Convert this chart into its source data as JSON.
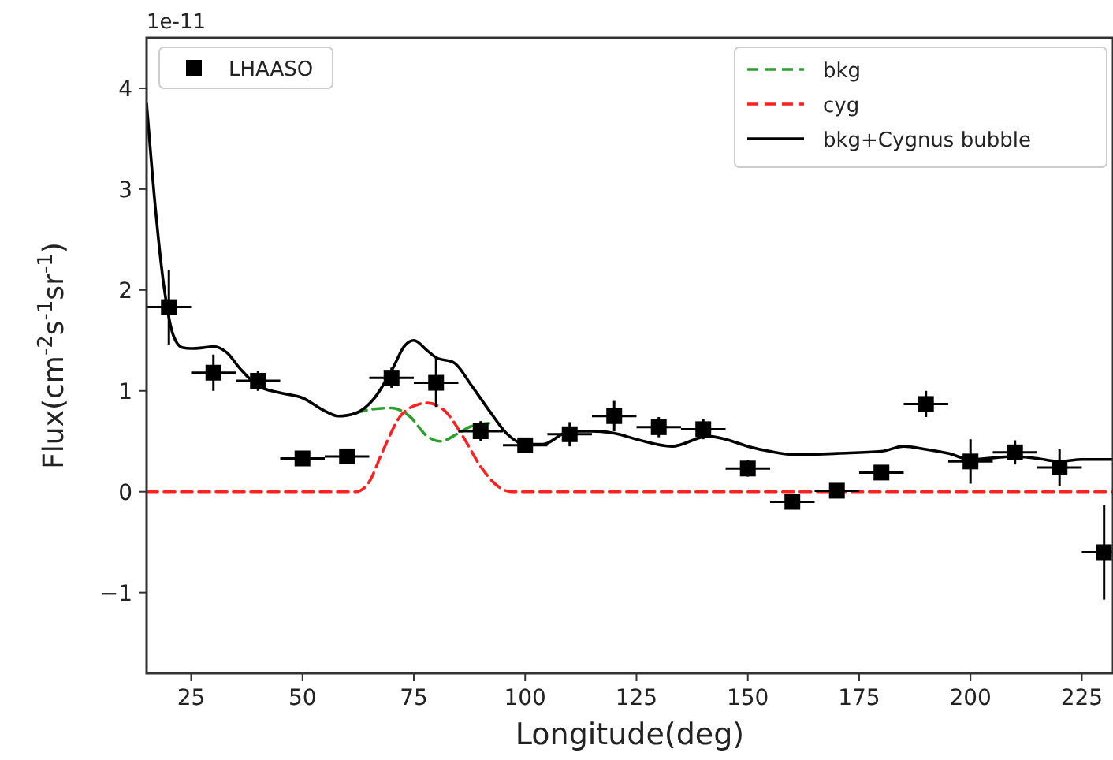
{
  "chart_data": {
    "type": "scatter",
    "xlabel": "Longitude(deg)",
    "ylabel": "Flux(cm$^{-2}$s$^{-1}$sr$^{-1}$)",
    "annotations": [
      "1e-11"
    ],
    "xlim": [
      15,
      232
    ],
    "xticks": [
      25,
      50,
      75,
      100,
      125,
      150,
      175,
      200,
      225
    ],
    "ylim": [
      -1.8,
      4.5
    ],
    "yticks": [
      -1,
      0,
      1,
      2,
      3,
      4
    ],
    "legend": "top right",
    "grid": false,
    "series": [
      {
        "name": "LHAASO",
        "type": "scatter",
        "marker": "square",
        "color": "#000000",
        "x": [
          20,
          30,
          40,
          50,
          60,
          70,
          80,
          90,
          100,
          110,
          120,
          130,
          140,
          150,
          160,
          170,
          180,
          190,
          200,
          210,
          220,
          230
        ],
        "values": [
          1.83,
          1.18,
          1.1,
          0.33,
          0.35,
          1.13,
          1.08,
          0.6,
          0.46,
          0.57,
          0.75,
          0.64,
          0.62,
          0.23,
          -0.1,
          0.01,
          0.19,
          0.87,
          0.3,
          0.39,
          0.24,
          -0.6
        ],
        "errors": [
          0.37,
          0.18,
          0.1,
          0.06,
          0.05,
          0.1,
          0.24,
          0.1,
          0.07,
          0.12,
          0.15,
          0.1,
          0.1,
          0.08,
          0.07,
          0.05,
          0.06,
          0.13,
          0.22,
          0.12,
          0.18,
          0.47
        ],
        "xerrors": [
          5,
          5,
          5,
          5,
          5,
          5,
          5,
          5,
          5,
          5,
          5,
          5,
          5,
          5,
          5,
          5,
          5,
          5,
          5,
          5,
          5,
          5
        ]
      },
      {
        "name": "bkg",
        "type": "line",
        "line_style": "dashed",
        "color": "#2ca02c",
        "x": [
          62,
          66,
          70,
          74,
          78,
          81,
          85,
          88,
          92
        ],
        "values": [
          0.78,
          0.82,
          0.83,
          0.75,
          0.55,
          0.5,
          0.58,
          0.65,
          0.68
        ]
      },
      {
        "name": "cyg",
        "type": "line",
        "line_style": "dashed",
        "color": "#ff2020",
        "x": [
          15,
          62,
          65,
          68,
          72,
          75,
          78,
          82,
          86,
          90,
          94,
          97,
          232
        ],
        "values": [
          0,
          0,
          0.1,
          0.4,
          0.75,
          0.85,
          0.88,
          0.8,
          0.55,
          0.25,
          0.05,
          0,
          0
        ]
      },
      {
        "name": "bkg+Cygnus bubble",
        "type": "line",
        "line_style": "solid",
        "color": "#000000",
        "x": [
          15,
          17,
          19,
          21,
          23,
          25,
          28,
          30,
          33,
          36,
          40,
          45,
          50,
          55,
          58,
          62,
          66,
          70,
          73,
          75,
          78,
          80,
          84,
          88,
          92,
          96,
          100,
          104,
          110,
          115,
          120,
          125,
          133,
          141,
          145,
          150,
          155,
          160,
          164,
          170,
          180,
          185,
          190,
          195,
          200,
          210,
          215,
          220,
          225,
          232
        ],
        "values": [
          3.85,
          2.8,
          2.0,
          1.55,
          1.43,
          1.42,
          1.43,
          1.44,
          1.38,
          1.22,
          1.05,
          0.98,
          0.93,
          0.8,
          0.75,
          0.78,
          0.92,
          1.2,
          1.45,
          1.5,
          1.4,
          1.33,
          1.28,
          1.05,
          0.8,
          0.57,
          0.47,
          0.47,
          0.6,
          0.6,
          0.58,
          0.52,
          0.45,
          0.55,
          0.52,
          0.45,
          0.4,
          0.37,
          0.37,
          0.38,
          0.4,
          0.45,
          0.42,
          0.38,
          0.32,
          0.35,
          0.33,
          0.3,
          0.32,
          0.32
        ]
      }
    ]
  }
}
